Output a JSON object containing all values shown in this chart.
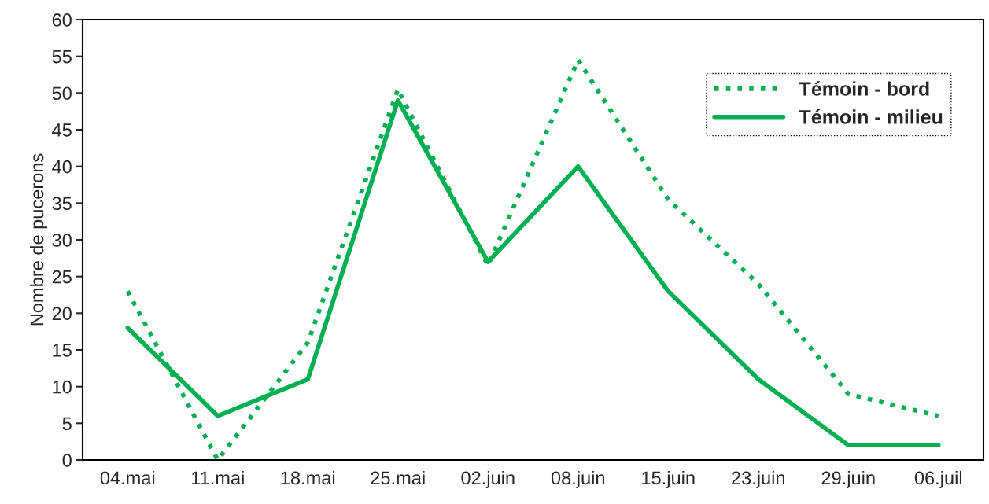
{
  "chart_data": {
    "type": "line",
    "ylabel": "Nombre de pucerons",
    "categories": [
      "04.mai",
      "11.mai",
      "18.mai",
      "25.mai",
      "02.juin",
      "08.juin",
      "15.juin",
      "23.juin",
      "29.juin",
      "06.juil"
    ],
    "series": [
      {
        "name": "Témoin - bord",
        "color": "#00b050",
        "line_style": "dotted",
        "values": [
          23,
          0,
          16,
          50.5,
          26.5,
          54.5,
          35.5,
          24,
          9,
          6
        ]
      },
      {
        "name": "Témoin - milieu",
        "color": "#00b050",
        "line_style": "solid",
        "values": [
          18,
          6,
          11,
          49,
          27,
          40,
          23,
          11,
          2,
          2
        ]
      }
    ],
    "ylim": [
      0,
      60
    ],
    "yticks": [
      0,
      5,
      10,
      15,
      20,
      25,
      30,
      35,
      40,
      45,
      50,
      55,
      60
    ],
    "grid": false,
    "legend": "top right",
    "marker": "none"
  }
}
